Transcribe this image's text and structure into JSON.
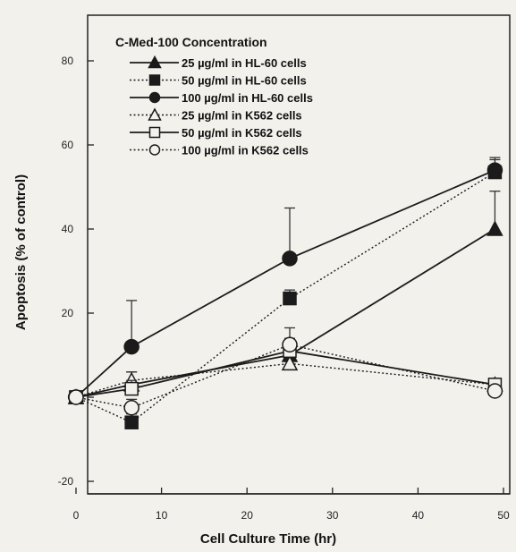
{
  "chart_data": {
    "type": "line",
    "title": "",
    "xlabel": "Cell Culture Time (hr)",
    "ylabel": "Apoptosis (% of control)",
    "xlim": [
      0,
      50
    ],
    "ylim": [
      -20,
      85
    ],
    "x_ticks": [
      0,
      10,
      20,
      30,
      40,
      50
    ],
    "y_ticks": [
      -20,
      0,
      20,
      40,
      60,
      80
    ],
    "grid": false,
    "legend_title": "C-Med-100 Concentration",
    "legend_position": "top-left",
    "x": [
      0,
      6.5,
      25,
      49
    ],
    "series": [
      {
        "name": "25 µg/ml in HL-60 cells",
        "values": [
          0,
          3,
          10,
          40
        ],
        "error": [
          0,
          3,
          4,
          9
        ],
        "marker": "triangle",
        "filled": true,
        "dash": "solid"
      },
      {
        "name": "50 µg/ml in HL-60 cells",
        "values": [
          0,
          -6,
          23.5,
          53.5
        ],
        "error": [
          0,
          2,
          2,
          3
        ],
        "marker": "square",
        "filled": true,
        "dash": "dotted"
      },
      {
        "name": "100 µg/ml in HL-60 cells",
        "values": [
          0,
          12,
          33,
          54
        ],
        "error": [
          0,
          11,
          12,
          3
        ],
        "marker": "circle",
        "filled": true,
        "dash": "solid"
      },
      {
        "name": "25 µg/ml in K562 cells",
        "values": [
          0,
          4,
          8,
          3
        ],
        "error": [
          0,
          2,
          3,
          1
        ],
        "marker": "triangle",
        "filled": false,
        "dash": "dotted"
      },
      {
        "name": "50 µg/ml in K562 cells",
        "values": [
          0,
          2,
          11,
          3
        ],
        "error": [
          0,
          2,
          2,
          1
        ],
        "marker": "square",
        "filled": false,
        "dash": "solid"
      },
      {
        "name": "100 µg/ml in K562 cells",
        "values": [
          0,
          -2.5,
          12.5,
          1.5
        ],
        "error": [
          0,
          2,
          4,
          1
        ],
        "marker": "circle",
        "filled": false,
        "dash": "dotted"
      }
    ]
  }
}
